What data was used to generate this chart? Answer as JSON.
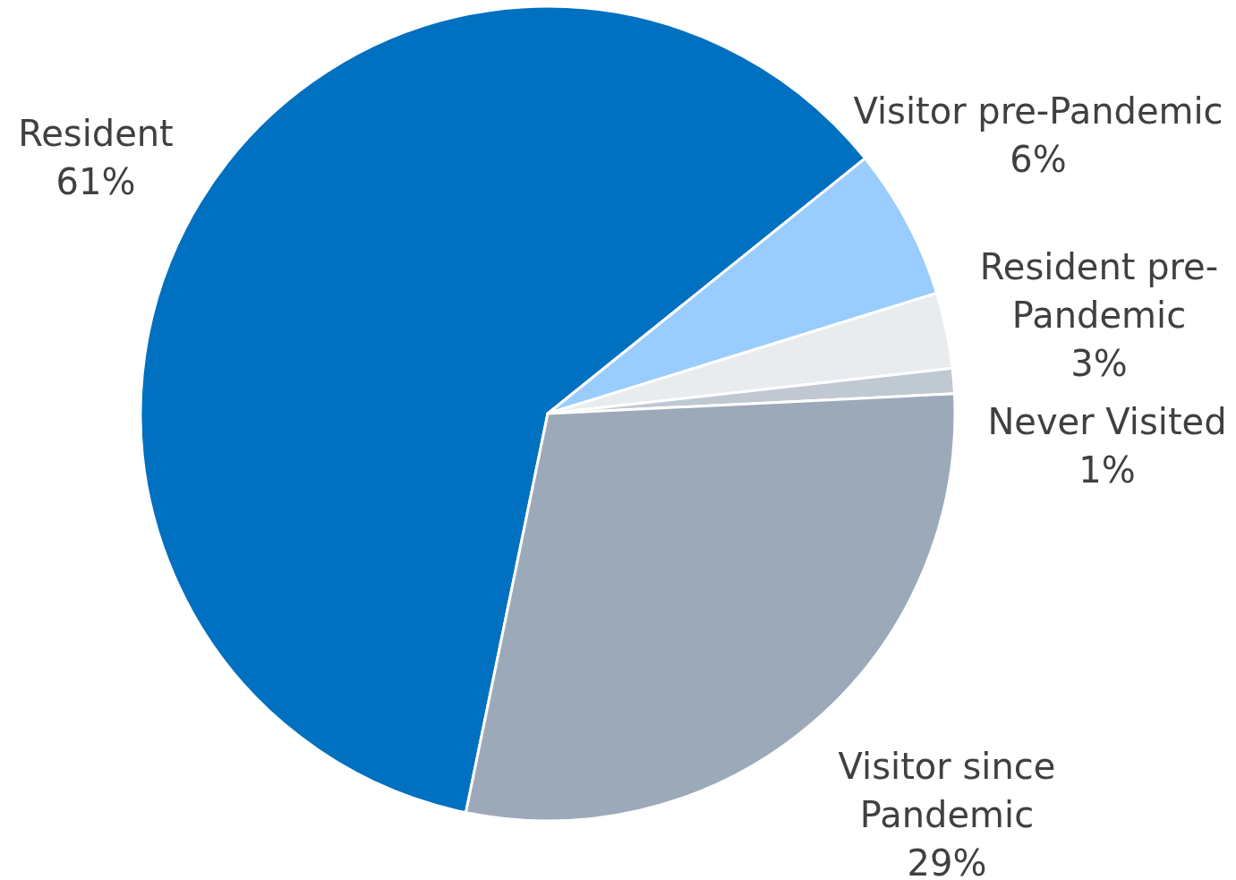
{
  "chart_data": {
    "type": "pie",
    "categories": [
      "Resident",
      "Visitor pre-Pandemic",
      "Resident pre-Pandemic",
      "Never Visited",
      "Visitor since Pandemic"
    ],
    "values": [
      61,
      6,
      3,
      1,
      29
    ],
    "value_labels": [
      "61%",
      "6%",
      "3%",
      "1%",
      "29%"
    ],
    "colors": [
      "#0070c0",
      "#99ccff",
      "#e8ecef",
      "#c0c8d2",
      "#9ca9b8"
    ]
  }
}
